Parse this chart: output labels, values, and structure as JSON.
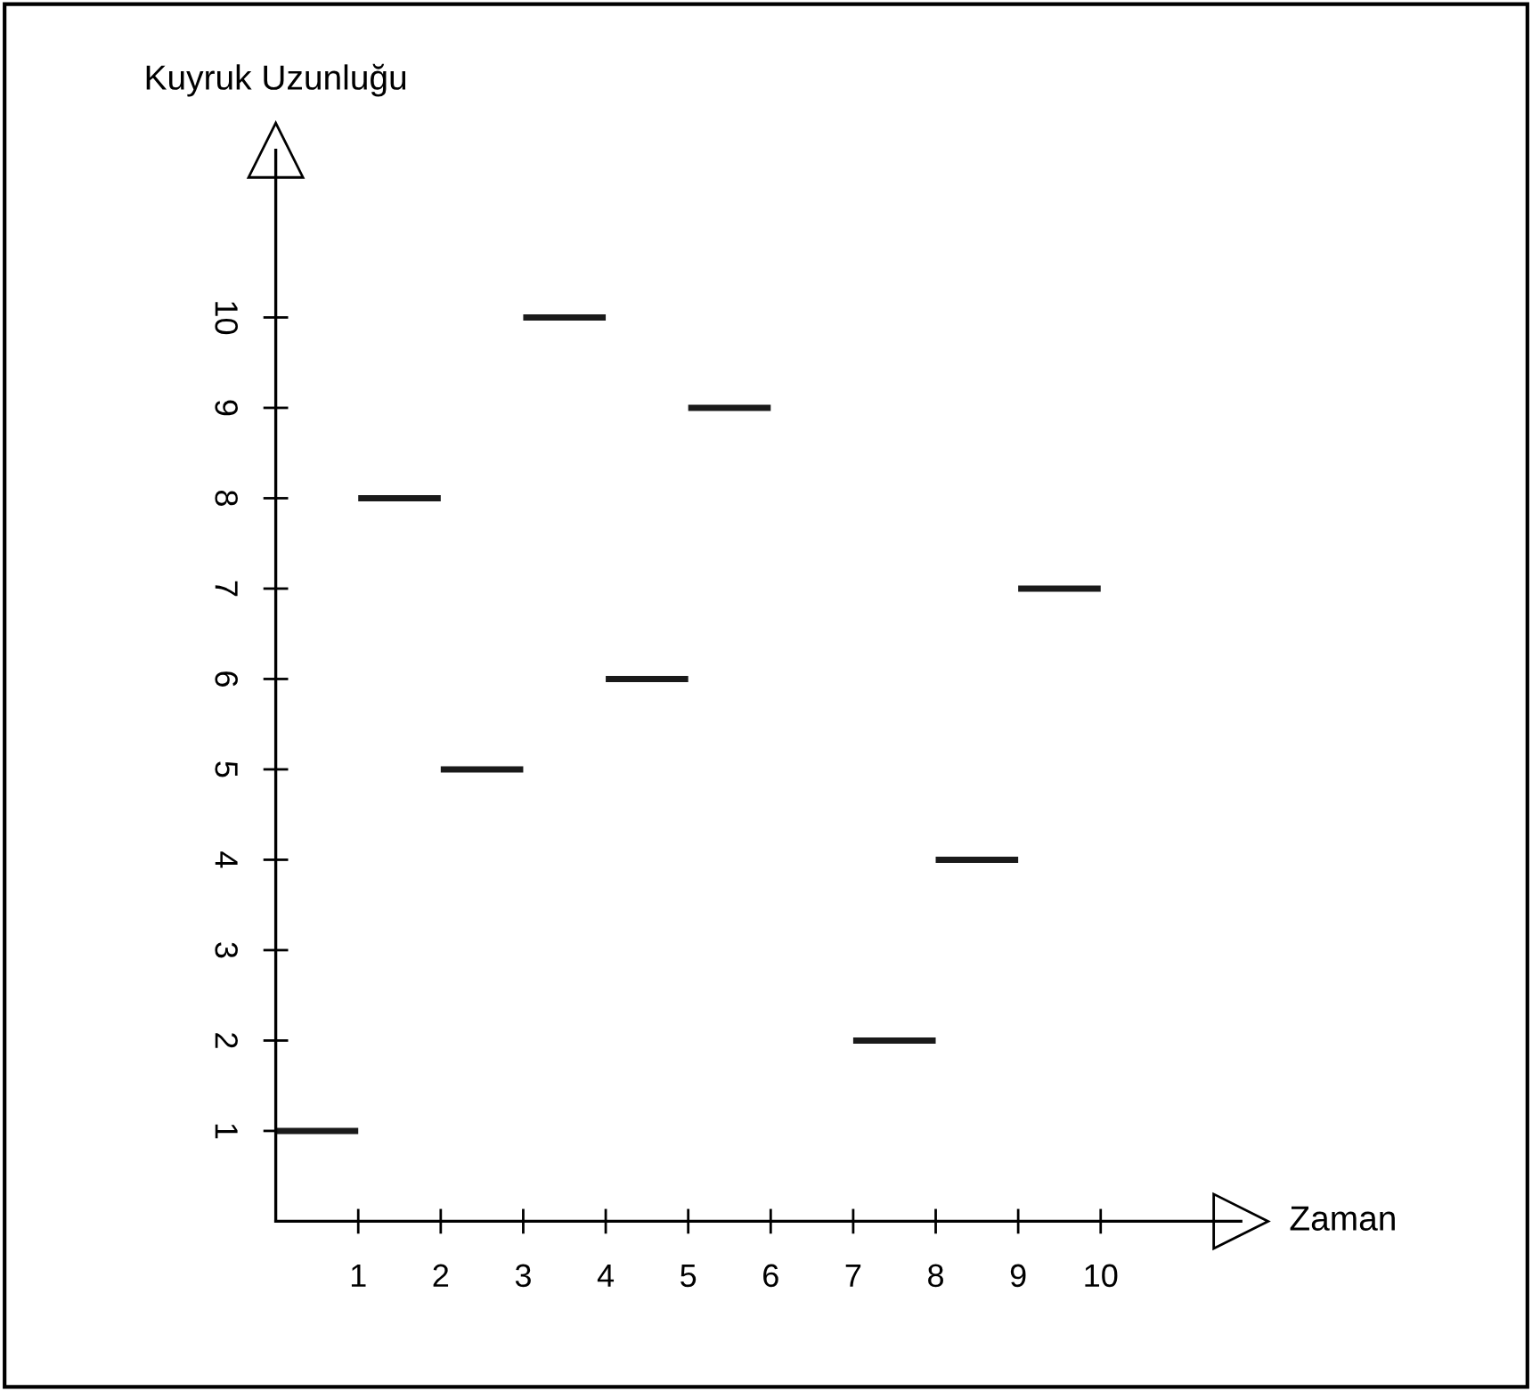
{
  "chart_data": {
    "type": "line",
    "xlabel": "Zaman",
    "ylabel": "Kuyruk Uzunluğu",
    "series": [
      {
        "color": "#1a1a1a",
        "x": [
          0,
          1
        ],
        "values": [
          1,
          1
        ]
      },
      {
        "color": "#1a1a1a",
        "x": [
          1,
          2
        ],
        "values": [
          8,
          8
        ]
      },
      {
        "color": "#1a1a1a",
        "x": [
          2,
          3
        ],
        "values": [
          5,
          5
        ]
      },
      {
        "color": "#1a1a1a",
        "x": [
          3,
          4
        ],
        "values": [
          10,
          10
        ]
      },
      {
        "color": "#1a1a1a",
        "x": [
          4,
          5
        ],
        "values": [
          6,
          6
        ]
      },
      {
        "color": "#1a1a1a",
        "x": [
          5,
          6
        ],
        "values": [
          9,
          9
        ]
      },
      {
        "color": "#1a1a1a",
        "x": [
          7,
          8
        ],
        "values": [
          2,
          2
        ]
      },
      {
        "color": "#1a1a1a",
        "x": [
          8,
          9
        ],
        "values": [
          4,
          4
        ]
      },
      {
        "color": "#1a1a1a",
        "x": [
          9,
          10
        ],
        "values": [
          7,
          7
        ]
      }
    ],
    "xlim": [
      0,
      11.7
    ],
    "ylim": [
      0,
      11.85
    ],
    "xticks": [
      1,
      2,
      3,
      4,
      5,
      6,
      7,
      8,
      9,
      10
    ],
    "yticks": [
      1,
      2,
      3,
      4,
      5,
      6,
      7,
      8,
      9,
      10
    ],
    "grid": false,
    "legend": false
  }
}
